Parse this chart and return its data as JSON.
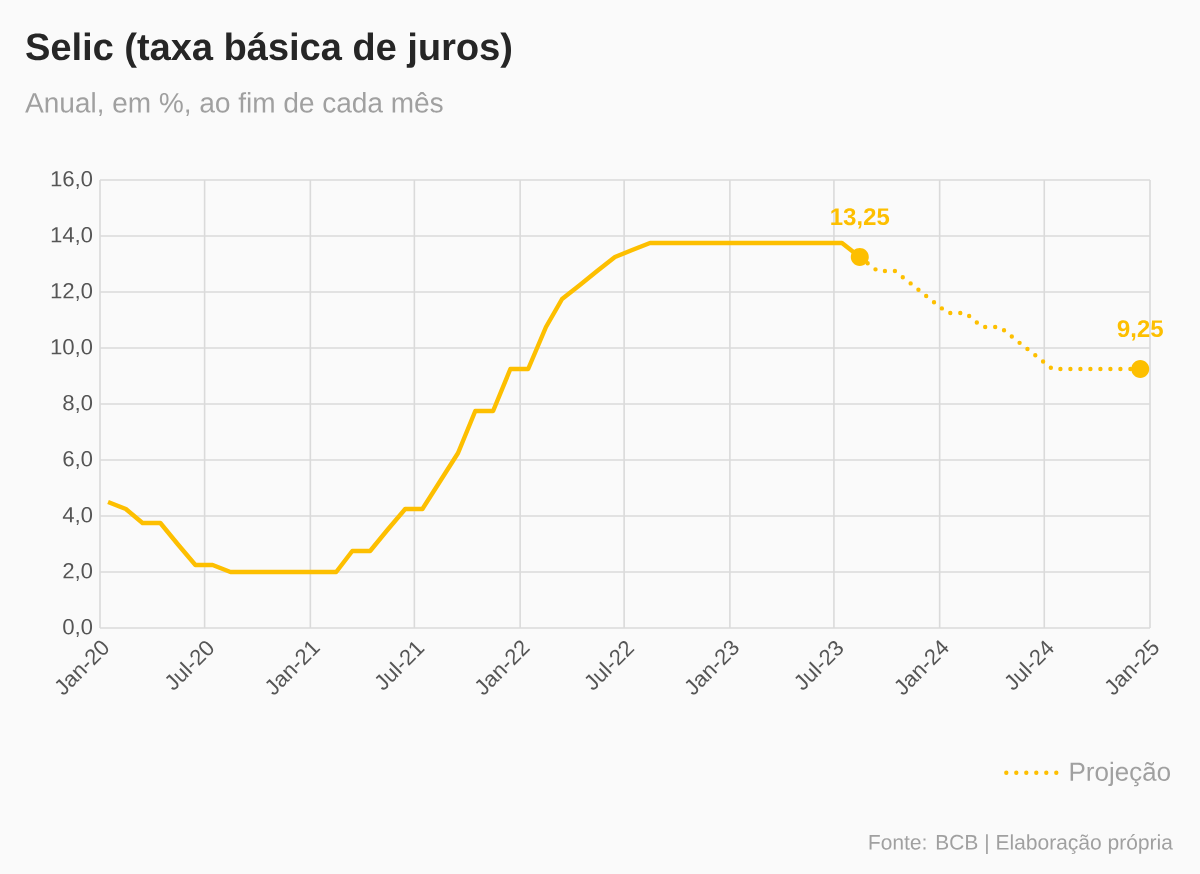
{
  "chart_data": {
    "type": "line",
    "title": "Selic (taxa básica de juros)",
    "subtitle": "Anual, em %, ao fim de cada mês",
    "annotations": [
      {
        "text": "13,25",
        "x": "2023-08-15",
        "y": 13.25
      },
      {
        "text": "9,25",
        "x": "2024-12-15",
        "y": 9.25
      },
      "Fonte: BCB | Elaboração própria"
    ],
    "series": [
      {
        "color": "#fdbf00",
        "line_style": "solid",
        "x": [
          "2020-01-15",
          "2020-02-15",
          "2020-03-15",
          "2020-04-15",
          "2020-05-15",
          "2020-06-15",
          "2020-07-15",
          "2020-08-15",
          "2020-09-15",
          "2020-10-15",
          "2020-11-15",
          "2020-12-15",
          "2021-01-15",
          "2021-02-15",
          "2021-03-15",
          "2021-04-15",
          "2021-05-15",
          "2021-06-15",
          "2021-07-15",
          "2021-08-15",
          "2021-09-15",
          "2021-10-15",
          "2021-11-15",
          "2021-12-15",
          "2022-01-15",
          "2022-02-15",
          "2022-03-15",
          "2022-04-15",
          "2022-05-15",
          "2022-06-15",
          "2022-07-15",
          "2022-08-15",
          "2022-09-15",
          "2022-10-15",
          "2022-11-15",
          "2022-12-15",
          "2023-01-15",
          "2023-02-15",
          "2023-03-15",
          "2023-04-15",
          "2023-05-15",
          "2023-06-15",
          "2023-07-15",
          "2023-08-15"
        ],
        "values": [
          4.5,
          4.25,
          3.75,
          3.75,
          3.0,
          2.25,
          2.25,
          2.0,
          2.0,
          2.0,
          2.0,
          2.0,
          2.0,
          2.0,
          2.75,
          2.75,
          3.5,
          4.25,
          4.25,
          5.25,
          6.25,
          7.75,
          7.75,
          9.25,
          9.25,
          10.75,
          11.75,
          12.25,
          12.75,
          13.25,
          13.5,
          13.75,
          13.75,
          13.75,
          13.75,
          13.75,
          13.75,
          13.75,
          13.75,
          13.75,
          13.75,
          13.75,
          13.75,
          13.25
        ]
      },
      {
        "name": "Projeção",
        "color": "#fdbf00",
        "line_style": "dotted",
        "x": [
          "2023-08-15",
          "2023-09-15",
          "2023-10-15",
          "2023-11-15",
          "2023-12-15",
          "2024-01-15",
          "2024-02-15",
          "2024-03-15",
          "2024-04-15",
          "2024-05-15",
          "2024-06-15",
          "2024-07-15",
          "2024-08-15",
          "2024-09-15",
          "2024-10-15",
          "2024-11-15",
          "2024-12-15"
        ],
        "values": [
          13.25,
          12.75,
          12.75,
          12.25,
          11.75,
          11.25,
          11.25,
          10.75,
          10.75,
          10.25,
          9.75,
          9.25,
          9.25,
          9.25,
          9.25,
          9.25,
          9.25
        ]
      }
    ],
    "xlim": [
      "2020-01",
      "2025-01"
    ],
    "xticks": [
      {
        "value": "2020-01",
        "label": "Jan-20"
      },
      {
        "value": "2020-07",
        "label": "Jul-20"
      },
      {
        "value": "2021-01",
        "label": "Jan-21"
      },
      {
        "value": "2021-07",
        "label": "Jul-21"
      },
      {
        "value": "2022-01",
        "label": "Jan-22"
      },
      {
        "value": "2022-07",
        "label": "Jul-22"
      },
      {
        "value": "2023-01",
        "label": "Jan-23"
      },
      {
        "value": "2023-07",
        "label": "Jul-23"
      },
      {
        "value": "2024-01",
        "label": "Jan-24"
      },
      {
        "value": "2024-07",
        "label": "Jul-24"
      },
      {
        "value": "2025-01",
        "label": "Jan-25"
      }
    ],
    "ylim": [
      0,
      16
    ],
    "yticks": [
      {
        "value": 0,
        "label": "0,0"
      },
      {
        "value": 2,
        "label": "2,0"
      },
      {
        "value": 4,
        "label": "4,0"
      },
      {
        "value": 6,
        "label": "6,0"
      },
      {
        "value": 8,
        "label": "8,0"
      },
      {
        "value": 10,
        "label": "10,0"
      },
      {
        "value": 12,
        "label": "12,0"
      },
      {
        "value": 14,
        "label": "14,0"
      },
      {
        "value": 16,
        "label": "16,0"
      }
    ],
    "grid": true,
    "legend": "bottom right",
    "marker": "none"
  }
}
